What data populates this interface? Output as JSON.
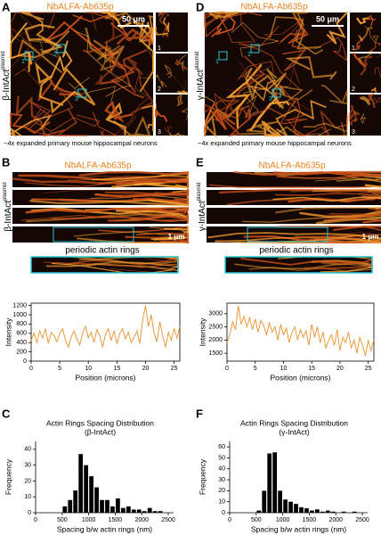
{
  "panels": [
    {
      "letter": "A",
      "title": "NbALFA-Ab635p",
      "scale_bar": "50 μm",
      "construct": "β-IntAct",
      "construct_sup": "plasmid",
      "roi_labels": [
        "1",
        "2",
        "3"
      ],
      "caption": "~4x expanded primary mouse hippocampal neurons"
    },
    {
      "letter": "B",
      "title": "NbALFA-Ab635p",
      "construct": "β-IntAct",
      "construct_sup": "plasmid",
      "scale_bar": "1 μm",
      "zoom_label": "periodic actin rings"
    },
    {
      "letter": "C"
    },
    {
      "letter": "D",
      "title": "NbALFA-Ab635p",
      "scale_bar": "50 μm",
      "construct": "γ-IntAct",
      "construct_sup": "plasmid",
      "roi_labels": [
        "1",
        "2",
        "3"
      ],
      "caption": "~4x expanded primary mouse hippocampal neurons"
    },
    {
      "letter": "E",
      "title": "NbALFA-Ab635p",
      "construct": "γ-IntAct",
      "construct_sup": "plasmid",
      "scale_bar": "1 μm",
      "zoom_label": "periodic actin rings"
    },
    {
      "letter": "F"
    }
  ],
  "chart_data": [
    {
      "type": "line",
      "xlabel": "Position (microns)",
      "ylabel": "Intensity",
      "color": "#e8912a",
      "x": [
        0,
        0.5,
        1,
        1.5,
        2,
        2.5,
        3,
        3.5,
        4,
        4.5,
        5,
        5.5,
        6,
        6.5,
        7,
        7.5,
        8,
        8.5,
        9,
        9.5,
        10,
        10.5,
        11,
        11.5,
        12,
        12.5,
        13,
        13.5,
        14,
        14.5,
        15,
        15.5,
        16,
        16.5,
        17,
        17.5,
        18,
        18.5,
        19,
        19.5,
        20,
        20.5,
        21,
        21.5,
        22,
        22.5,
        23,
        23.5,
        24,
        24.5,
        25,
        25.5,
        26
      ],
      "values": [
        450,
        600,
        400,
        650,
        500,
        700,
        380,
        620,
        550,
        420,
        600,
        700,
        450,
        300,
        520,
        650,
        480,
        350,
        600,
        750,
        500,
        620,
        400,
        680,
        550,
        300,
        580,
        700,
        450,
        650,
        380,
        600,
        700,
        480,
        620,
        400,
        520,
        650,
        380,
        880,
        1200,
        750,
        1000,
        600,
        420,
        850,
        550,
        300,
        620,
        450,
        700,
        500,
        750
      ],
      "xlim": [
        0,
        26
      ],
      "xticks": [
        0,
        5,
        10,
        15,
        20,
        25
      ],
      "ylim": [
        0,
        1250
      ],
      "yticks": [
        0,
        200,
        400,
        600,
        800,
        1000,
        1200
      ]
    },
    {
      "type": "histogram",
      "title": "Actin Rings Spacing Distribution",
      "subtitle": "(β-IntAct)",
      "xlabel": "Spacing b/w actin rings (nm)",
      "ylabel": "Frequency",
      "color": "#000000",
      "bins": [
        400,
        500,
        600,
        700,
        800,
        900,
        1000,
        1100,
        1200,
        1300,
        1400,
        1500,
        1600,
        1700,
        1800,
        1900,
        2000,
        2100,
        2200,
        2300,
        2400
      ],
      "values": [
        0,
        4,
        8,
        14,
        37,
        30,
        23,
        16,
        8,
        8,
        4,
        9,
        3,
        4,
        2,
        2,
        1,
        3,
        1,
        1
      ],
      "xlim": [
        0,
        2600
      ],
      "xticks": [
        0,
        500,
        1000,
        1500,
        2000,
        2500
      ],
      "ylim": [
        0,
        45
      ],
      "yticks": [
        0,
        10,
        20,
        30,
        40
      ]
    },
    {
      "type": "line",
      "xlabel": "Position (microns)",
      "ylabel": "Intensity",
      "color": "#e8912a",
      "x": [
        0,
        0.5,
        1,
        1.5,
        2,
        2.5,
        3,
        3.5,
        4,
        4.5,
        5,
        5.5,
        6,
        6.5,
        7,
        7.5,
        8,
        8.5,
        9,
        9.5,
        10,
        10.5,
        11,
        11.5,
        12,
        12.5,
        13,
        13.5,
        14,
        14.5,
        15,
        15.5,
        16,
        16.5,
        17,
        17.5,
        18,
        18.5,
        19,
        19.5,
        20,
        20.5,
        21,
        21.5,
        22,
        22.5,
        23,
        23.5,
        24,
        24.5,
        25,
        25.5,
        26
      ],
      "values": [
        1900,
        2200,
        2700,
        2400,
        3300,
        2600,
        2900,
        2500,
        2850,
        2400,
        2800,
        2300,
        2750,
        2550,
        2200,
        2650,
        2300,
        2500,
        2000,
        2600,
        2200,
        2450,
        1900,
        2300,
        2500,
        2000,
        2400,
        2100,
        2350,
        1800,
        2600,
        2100,
        2500,
        1900,
        2300,
        1700,
        2000,
        2200,
        1800,
        2400,
        1600,
        2100,
        1900,
        2300,
        1700,
        2000,
        1500,
        2100,
        1800,
        1400,
        2000,
        1600,
        2000
      ],
      "xlim": [
        0,
        26
      ],
      "xticks": [
        0,
        5,
        10,
        15,
        20,
        25
      ],
      "ylim": [
        1200,
        3400
      ],
      "yticks": [
        1500,
        2000,
        2500,
        3000
      ]
    },
    {
      "type": "histogram",
      "title": "Actin Rings Spacing Distribution",
      "subtitle": "(γ-IntAct)",
      "xlabel": "Spacing b/w actin rings (nm)",
      "ylabel": "Frequency",
      "color": "#000000",
      "bins": [
        500,
        600,
        700,
        800,
        900,
        1000,
        1100,
        1200,
        1300,
        1400,
        1500,
        1600,
        1700,
        1800,
        1900,
        2000,
        2100,
        2200,
        2300,
        2400
      ],
      "values": [
        2,
        20,
        54,
        55,
        20,
        12,
        10,
        8,
        5,
        4,
        2,
        3,
        1,
        2,
        1,
        0,
        1,
        0,
        1
      ],
      "xlim": [
        0,
        2600
      ],
      "xticks": [
        0,
        500,
        1000,
        1500,
        2000,
        2500
      ],
      "ylim": [
        0,
        65
      ],
      "yticks": [
        0,
        10,
        20,
        30,
        40,
        50,
        60
      ]
    }
  ]
}
